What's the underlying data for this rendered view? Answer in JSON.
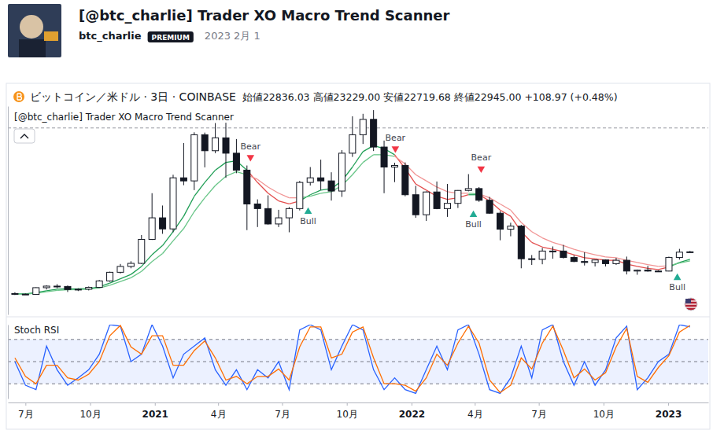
{
  "header": {
    "title": "[@btc_charlie] Trader XO Macro Trend Scanner",
    "author": "btc_charlie",
    "badge": "PREMIUM",
    "date": "2023 2月 1"
  },
  "chart_data": [
    {
      "type": "candlestick",
      "title": "ビットコイン／米ドル · 3日 · COINBASE",
      "ohlc_text": "始値22836.03 高値23229.00 安値22719.68 終値22945.00 +108.97 (+0.48%)",
      "indicator": "[@btc_charlie] Trader XO Macro Trend Scanner",
      "x": [
        "2020-06-16",
        "2020-07-01",
        "2020-07-16",
        "2020-07-31",
        "2020-08-15",
        "2020-08-30",
        "2020-09-14",
        "2020-09-29",
        "2020-10-14",
        "2020-10-29",
        "2020-11-13",
        "2020-11-28",
        "2020-12-13",
        "2020-12-28",
        "2021-01-12",
        "2021-01-27",
        "2021-02-11",
        "2021-02-26",
        "2021-03-13",
        "2021-03-28",
        "2021-04-12",
        "2021-04-27",
        "2021-05-12",
        "2021-05-27",
        "2021-06-11",
        "2021-06-26",
        "2021-07-11",
        "2021-07-26",
        "2021-08-10",
        "2021-08-25",
        "2021-09-09",
        "2021-09-24",
        "2021-10-09",
        "2021-10-24",
        "2021-11-08",
        "2021-11-23",
        "2021-12-08",
        "2021-12-23",
        "2022-01-07",
        "2022-01-22",
        "2022-02-06",
        "2022-02-21",
        "2022-03-08",
        "2022-03-23",
        "2022-04-07",
        "2022-04-22",
        "2022-05-07",
        "2022-05-22",
        "2022-06-06",
        "2022-06-21",
        "2022-07-06",
        "2022-07-21",
        "2022-08-05",
        "2022-08-20",
        "2022-09-04",
        "2022-09-19",
        "2022-10-04",
        "2022-10-19",
        "2022-11-03",
        "2022-11-18",
        "2022-12-03",
        "2022-12-18",
        "2023-01-02",
        "2023-01-17",
        "2023-02-01"
      ],
      "open": [
        9400,
        9200,
        9100,
        11300,
        11800,
        11700,
        10700,
        10800,
        11400,
        13500,
        16300,
        18200,
        19200,
        27000,
        34000,
        30400,
        47000,
        46000,
        61000,
        55800,
        60000,
        55000,
        49500,
        38500,
        37000,
        32000,
        34000,
        37000,
        45500,
        47000,
        46000,
        42700,
        55000,
        61000,
        66000,
        57000,
        50500,
        51000,
        41500,
        35000,
        42400,
        37000,
        38700,
        42900,
        43500,
        39700,
        35500,
        30300,
        31300,
        20700,
        20500,
        23200,
        23200,
        21100,
        19800,
        19500,
        20300,
        19100,
        20200,
        16700,
        17000,
        16700,
        16700,
        21100,
        22836.03
      ],
      "high": [
        9800,
        9400,
        11400,
        12100,
        12450,
        12000,
        11100,
        11700,
        13800,
        16500,
        19000,
        19900,
        28400,
        42000,
        38000,
        48000,
        58300,
        61800,
        61700,
        64800,
        64900,
        59600,
        51000,
        40000,
        41300,
        36600,
        37500,
        46000,
        50500,
        52900,
        48800,
        56000,
        67000,
        67800,
        69000,
        59100,
        51900,
        52000,
        44400,
        42600,
        45800,
        45000,
        43000,
        48200,
        44000,
        40800,
        36200,
        32400,
        31700,
        21900,
        24200,
        24700,
        25200,
        21800,
        22800,
        20400,
        20500,
        21000,
        21400,
        17200,
        18400,
        17000,
        21400,
        23900,
        23229
      ],
      "low": [
        8900,
        9050,
        9000,
        10700,
        11100,
        9900,
        10200,
        10400,
        11200,
        13200,
        15900,
        17600,
        19000,
        26800,
        28800,
        29300,
        44600,
        43000,
        50400,
        55000,
        47000,
        48500,
        30000,
        31000,
        31800,
        31000,
        29300,
        36400,
        44500,
        43000,
        39600,
        40800,
        53800,
        58000,
        55700,
        42000,
        45600,
        41000,
        34000,
        33000,
        36800,
        34300,
        37200,
        42600,
        39200,
        35300,
        26700,
        28000,
        17600,
        18700,
        18900,
        20700,
        20800,
        19600,
        18500,
        18200,
        18200,
        18700,
        15600,
        15500,
        16500,
        16400,
        16600,
        20400,
        22719.68
      ],
      "close": [
        9200,
        9100,
        11300,
        11800,
        11700,
        10700,
        10800,
        11400,
        13500,
        16300,
        18200,
        19200,
        27000,
        34000,
        30400,
        47000,
        46000,
        61000,
        55800,
        60000,
        55000,
        49500,
        38500,
        37000,
        32000,
        34000,
        37000,
        45500,
        47000,
        46000,
        42700,
        55000,
        61000,
        66000,
        57000,
        50500,
        51000,
        41500,
        35000,
        42400,
        37000,
        38700,
        42900,
        43500,
        39700,
        35500,
        30300,
        31300,
        20700,
        20500,
        23200,
        23200,
        21100,
        19800,
        19500,
        20300,
        19100,
        20200,
        16700,
        17000,
        16700,
        16700,
        21100,
        22836.03,
        22945
      ],
      "color": "#131722",
      "series": [
        {
          "values": [
            9300,
            9250,
            9700,
            10300,
            10800,
            10900,
            10900,
            11000,
            11600,
            12800,
            14200,
            15600,
            18200,
            22000,
            25000,
            29500,
            34500,
            41000,
            45500,
            49500,
            52000,
            52500,
            49500,
            45500,
            42000,
            39500,
            38500,
            39500,
            41500,
            43000,
            43500,
            46000,
            50500,
            55500,
            57500,
            56500,
            54500,
            50000,
            45000,
            43000,
            41000,
            40000,
            40500,
            41500,
            41500,
            39500,
            36500,
            34500,
            29500,
            26000,
            24500,
            23800,
            23000,
            22000,
            21000,
            20700,
            20200,
            20200,
            19000,
            18200,
            17600,
            17200,
            18000,
            19500,
            20500
          ],
          "colors": [
            "#1f9e55",
            "#1f9e55",
            "#1f9e55",
            "#1f9e55",
            "#1f9e55",
            "#1f9e55",
            "#1f9e55",
            "#1f9e55",
            "#1f9e55",
            "#1f9e55",
            "#1f9e55",
            "#1f9e55",
            "#1f9e55",
            "#1f9e55",
            "#1f9e55",
            "#1f9e55",
            "#1f9e55",
            "#1f9e55",
            "#1f9e55",
            "#1f9e55",
            "#1f9e55",
            "#1f9e55",
            "#1f9e55",
            "#e34d4d",
            "#e34d4d",
            "#e34d4d",
            "#e34d4d",
            "#e34d4d",
            "#1f9e55",
            "#1f9e55",
            "#1f9e55",
            "#1f9e55",
            "#1f9e55",
            "#1f9e55",
            "#1f9e55",
            "#1f9e55",
            "#1f9e55",
            "#e34d4d",
            "#e34d4d",
            "#e34d4d",
            "#e34d4d",
            "#e34d4d",
            "#e34d4d",
            "#e34d4d",
            "#1f9e55",
            "#e34d4d",
            "#e34d4d",
            "#e34d4d",
            "#e34d4d",
            "#e34d4d",
            "#e34d4d",
            "#e34d4d",
            "#e34d4d",
            "#e34d4d",
            "#e34d4d",
            "#e34d4d",
            "#e34d4d",
            "#e34d4d",
            "#e34d4d",
            "#e34d4d",
            "#e34d4d",
            "#e34d4d",
            "#e34d4d",
            "#1f9e55",
            "#1f9e55"
          ]
        },
        {
          "values": [
            9250,
            9200,
            9500,
            10000,
            10400,
            10600,
            10700,
            10800,
            11200,
            12100,
            13300,
            14500,
            16600,
            19800,
            22400,
            26500,
            30500,
            36000,
            40500,
            44500,
            47500,
            49000,
            48000,
            46500,
            44000,
            42000,
            40500,
            40500,
            41000,
            42000,
            42500,
            44500,
            48000,
            52000,
            54500,
            54500,
            54000,
            51500,
            48000,
            46000,
            44000,
            42500,
            42000,
            42000,
            41800,
            40500,
            38500,
            36500,
            32500,
            29500,
            27500,
            26000,
            25000,
            23800,
            22800,
            22000,
            21300,
            21000,
            20200,
            19500,
            18800,
            18200,
            18400,
            19300,
            20000
          ],
          "colors": [
            "#67c587",
            "#67c587",
            "#67c587",
            "#67c587",
            "#67c587",
            "#67c587",
            "#67c587",
            "#67c587",
            "#67c587",
            "#67c587",
            "#67c587",
            "#67c587",
            "#67c587",
            "#67c587",
            "#67c587",
            "#67c587",
            "#67c587",
            "#67c587",
            "#67c587",
            "#67c587",
            "#67c587",
            "#67c587",
            "#67c587",
            "#f19393",
            "#f19393",
            "#f19393",
            "#f19393",
            "#f19393",
            "#67c587",
            "#67c587",
            "#67c587",
            "#67c587",
            "#67c587",
            "#67c587",
            "#67c587",
            "#67c587",
            "#67c587",
            "#f19393",
            "#f19393",
            "#f19393",
            "#f19393",
            "#f19393",
            "#f19393",
            "#f19393",
            "#67c587",
            "#f19393",
            "#f19393",
            "#f19393",
            "#f19393",
            "#f19393",
            "#f19393",
            "#f19393",
            "#f19393",
            "#f19393",
            "#f19393",
            "#f19393",
            "#f19393",
            "#f19393",
            "#f19393",
            "#f19393",
            "#f19393",
            "#f19393",
            "#f19393",
            "#67c587",
            "#67c587"
          ]
        }
      ],
      "signals": [
        {
          "x": "2021-05-17",
          "y": 53700,
          "label": "Bear",
          "color": "#f23645",
          "marker": "triangle-down"
        },
        {
          "x": "2021-08-07",
          "y": 36000,
          "label": "Bull",
          "color": "#22ab94",
          "marker": "triangle-up"
        },
        {
          "x": "2021-12-09",
          "y": 56500,
          "label": "Bear",
          "color": "#f23645",
          "marker": "triangle-down"
        },
        {
          "x": "2022-03-30",
          "y": 35000,
          "label": "Bull",
          "color": "#22ab94",
          "marker": "triangle-up"
        },
        {
          "x": "2022-04-10",
          "y": 50000,
          "label": "Bear",
          "color": "#f23645",
          "marker": "triangle-down"
        },
        {
          "x": "2023-01-14",
          "y": 14500,
          "label": "Bull",
          "color": "#22ab94",
          "marker": "triangle-up"
        }
      ],
      "hlines": [
        63200
      ],
      "xlim": [
        "2020-06-06",
        "2023-02-27"
      ],
      "ylim": [
        2600,
        70300
      ],
      "tick_labels": false
    },
    {
      "type": "line",
      "title": "Stoch RSI",
      "x": [
        "2020-06-16",
        "2020-07-01",
        "2020-07-16",
        "2020-07-31",
        "2020-08-15",
        "2020-08-30",
        "2020-09-14",
        "2020-09-29",
        "2020-10-14",
        "2020-10-29",
        "2020-11-13",
        "2020-11-28",
        "2020-12-13",
        "2020-12-28",
        "2021-01-12",
        "2021-01-27",
        "2021-02-11",
        "2021-02-26",
        "2021-03-13",
        "2021-03-28",
        "2021-04-12",
        "2021-04-27",
        "2021-05-12",
        "2021-05-27",
        "2021-06-11",
        "2021-06-26",
        "2021-07-11",
        "2021-07-26",
        "2021-08-10",
        "2021-08-25",
        "2021-09-09",
        "2021-09-24",
        "2021-10-09",
        "2021-10-24",
        "2021-11-08",
        "2021-11-23",
        "2021-12-08",
        "2021-12-23",
        "2022-01-07",
        "2022-01-22",
        "2022-02-06",
        "2022-02-21",
        "2022-03-08",
        "2022-03-23",
        "2022-04-07",
        "2022-04-22",
        "2022-05-07",
        "2022-05-22",
        "2022-06-06",
        "2022-06-21",
        "2022-07-06",
        "2022-07-21",
        "2022-08-05",
        "2022-08-20",
        "2022-09-04",
        "2022-09-19",
        "2022-10-04",
        "2022-10-19",
        "2022-11-03",
        "2022-11-18",
        "2022-12-03",
        "2022-12-18",
        "2023-01-02",
        "2023-01-17",
        "2023-02-01"
      ],
      "series": [
        {
          "color": "#2962ff",
          "values": [
            50,
            18,
            12,
            71,
            39,
            18,
            28,
            39,
            60,
            100,
            98,
            50,
            60,
            100,
            71,
            28,
            60,
            71,
            82,
            39,
            18,
            39,
            12,
            39,
            28,
            50,
            12,
            93,
            100,
            93,
            39,
            71,
            100,
            93,
            39,
            12,
            28,
            12,
            7,
            39,
            71,
            39,
            93,
            100,
            60,
            12,
            7,
            28,
            71,
            28,
            93,
            100,
            50,
            18,
            50,
            18,
            39,
            82,
            98,
            12,
            28,
            50,
            60,
            100,
            97
          ]
        },
        {
          "color": "#ff6d00",
          "values": [
            55,
            30,
            20,
            45,
            45,
            28,
            25,
            33,
            50,
            85,
            99,
            70,
            60,
            85,
            85,
            45,
            45,
            65,
            78,
            55,
            25,
            30,
            20,
            30,
            30,
            40,
            25,
            70,
            97,
            97,
            55,
            60,
            90,
            97,
            55,
            20,
            20,
            18,
            10,
            28,
            60,
            45,
            75,
            98,
            75,
            25,
            8,
            18,
            55,
            40,
            75,
            98,
            65,
            28,
            40,
            25,
            35,
            70,
            95,
            30,
            22,
            42,
            58,
            90,
            99
          ]
        }
      ],
      "xlim": [
        "2020-06-06",
        "2023-02-27"
      ],
      "xticks": [
        {
          "value": "2020-07-01",
          "label": "7月"
        },
        {
          "value": "2020-10-01",
          "label": "10月"
        },
        {
          "value": "2021-01-01",
          "label": "2021"
        },
        {
          "value": "2021-04-01",
          "label": "4月"
        },
        {
          "value": "2021-07-01",
          "label": "7月"
        },
        {
          "value": "2021-10-01",
          "label": "10月"
        },
        {
          "value": "2022-01-01",
          "label": "2022"
        },
        {
          "value": "2022-04-01",
          "label": "4月"
        },
        {
          "value": "2022-07-01",
          "label": "7月"
        },
        {
          "value": "2022-10-01",
          "label": "10月"
        },
        {
          "value": "2023-01-01",
          "label": "2023"
        }
      ],
      "ylim": [
        0,
        100
      ],
      "yticks": [
        20,
        50,
        80
      ],
      "band": [
        20,
        80
      ],
      "grid": true,
      "tick_labels": "x"
    }
  ]
}
